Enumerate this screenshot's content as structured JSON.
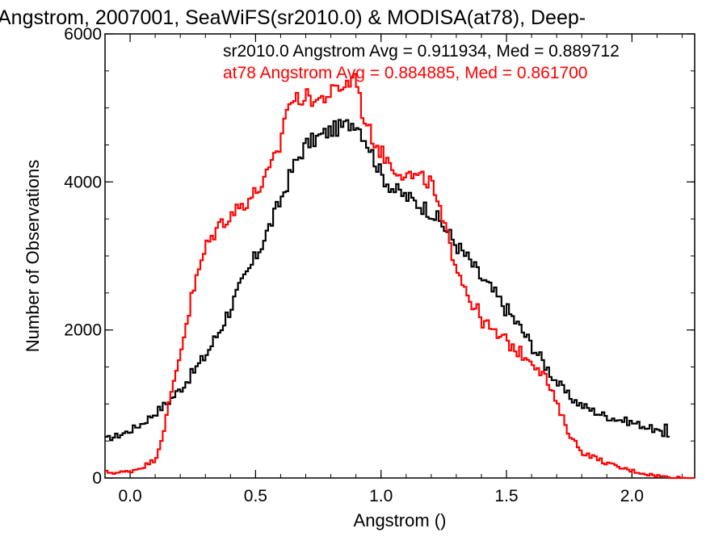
{
  "chart_data": {
    "type": "line",
    "title": "Angstrom, 2007001, SeaWiFS(sr2010.0) & MODISA(at78), Deep-",
    "xlabel": "Angstrom ()",
    "ylabel": "Number of Observations",
    "xlim": [
      -0.1,
      2.25
    ],
    "ylim": [
      0,
      6000
    ],
    "xticks": [
      0.0,
      0.5,
      1.0,
      1.5,
      2.0
    ],
    "xtick_labels": [
      "0.0",
      "0.5",
      "1.0",
      "1.5",
      "2.0"
    ],
    "yticks": [
      0,
      2000,
      4000,
      6000
    ],
    "ytick_labels": [
      "0",
      "2000",
      "4000",
      "6000"
    ],
    "grid": false,
    "legend": "top-right",
    "series": [
      {
        "name": "sr2010.0",
        "color": "#000000",
        "label": "sr2010.0 Angstrom Avg = 0.911934, Med = 0.889712",
        "x": [
          -0.1,
          -0.05,
          0.0,
          0.05,
          0.1,
          0.15,
          0.2,
          0.25,
          0.3,
          0.35,
          0.4,
          0.45,
          0.5,
          0.55,
          0.6,
          0.65,
          0.7,
          0.75,
          0.8,
          0.85,
          0.9,
          0.95,
          1.0,
          1.05,
          1.1,
          1.15,
          1.2,
          1.25,
          1.3,
          1.35,
          1.4,
          1.45,
          1.5,
          1.55,
          1.6,
          1.65,
          1.7,
          1.75,
          1.8,
          1.85,
          1.9,
          1.95,
          2.0,
          2.05,
          2.1,
          2.13,
          2.14,
          2.15
        ],
        "values": [
          520,
          570,
          640,
          740,
          880,
          1020,
          1200,
          1420,
          1650,
          1950,
          2300,
          2650,
          2980,
          3350,
          3750,
          4200,
          4500,
          4600,
          4700,
          4750,
          4820,
          4500,
          4100,
          3900,
          3800,
          3700,
          3600,
          3400,
          3150,
          2950,
          2700,
          2500,
          2280,
          2050,
          1800,
          1550,
          1300,
          1100,
          980,
          900,
          830,
          790,
          750,
          700,
          640,
          550,
          950,
          200
        ]
      },
      {
        "name": "at78",
        "color": "#ff0000",
        "label": "at78 Angstrom Avg = 0.884885, Med = 0.861700",
        "x": [
          -0.1,
          -0.05,
          0.0,
          0.05,
          0.1,
          0.12,
          0.15,
          0.2,
          0.25,
          0.3,
          0.35,
          0.4,
          0.45,
          0.5,
          0.55,
          0.6,
          0.62,
          0.65,
          0.7,
          0.75,
          0.8,
          0.85,
          0.88,
          0.9,
          0.92,
          0.95,
          1.0,
          1.05,
          1.1,
          1.15,
          1.2,
          1.25,
          1.3,
          1.35,
          1.4,
          1.45,
          1.5,
          1.55,
          1.6,
          1.65,
          1.7,
          1.75,
          1.8,
          1.85,
          1.9,
          1.95,
          2.0,
          2.05,
          2.1,
          2.15,
          2.2,
          2.25
        ],
        "values": [
          80,
          70,
          90,
          150,
          250,
          450,
          900,
          1700,
          2500,
          3100,
          3400,
          3560,
          3700,
          3850,
          4100,
          4500,
          5000,
          5100,
          5150,
          5100,
          5200,
          5300,
          5350,
          5500,
          5000,
          4700,
          4400,
          4200,
          4100,
          4050,
          4000,
          3400,
          2900,
          2450,
          2150,
          1950,
          1850,
          1700,
          1600,
          1400,
          1000,
          600,
          350,
          280,
          200,
          140,
          100,
          60,
          30,
          10,
          0,
          0
        ]
      }
    ]
  }
}
